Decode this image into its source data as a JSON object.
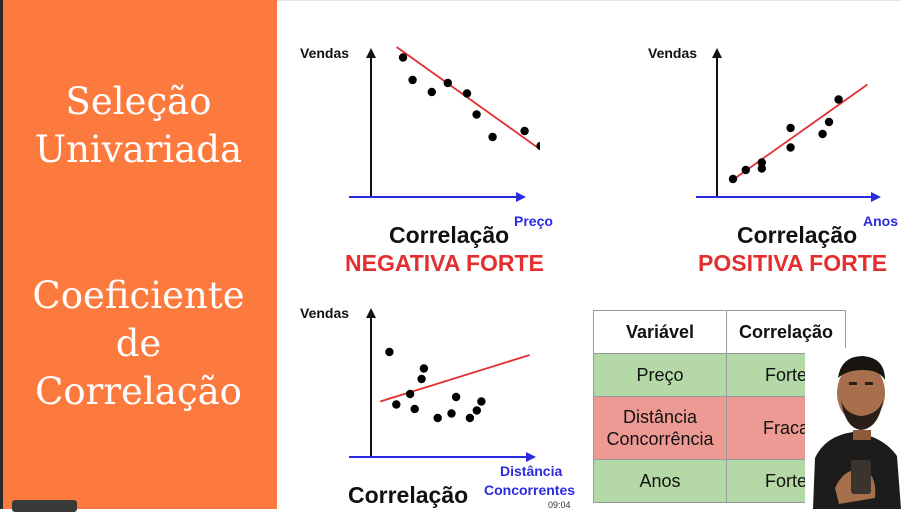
{
  "sidebar": {
    "title_line1": "Seleção",
    "title_line2": "Univariada",
    "subtitle_line1": "Coeficiente",
    "subtitle_line2": "de",
    "subtitle_line3": "Correlação"
  },
  "charts": [
    {
      "ylabel": "Vendas",
      "xlabel": "Preço",
      "caption": "Correlação",
      "strength": "NEGATIVA FORTE"
    },
    {
      "ylabel": "Vendas",
      "xlabel": "Anos",
      "caption": "Correlação",
      "strength": "POSITIVA FORTE"
    },
    {
      "ylabel": "Vendas",
      "xlabel_line1": "Distância",
      "xlabel_line2": "Concorrentes",
      "caption": "Correlação"
    }
  ],
  "chart_data": [
    {
      "type": "scatter",
      "title": "",
      "ylabel": "Vendas",
      "xlabel": "Preço",
      "points": [
        [
          1,
          9.3
        ],
        [
          1.3,
          7.8
        ],
        [
          1.9,
          7.0
        ],
        [
          2.4,
          7.6
        ],
        [
          3.0,
          6.9
        ],
        [
          3.3,
          5.5
        ],
        [
          3.8,
          4.0
        ],
        [
          4.8,
          4.4
        ],
        [
          5.3,
          3.4
        ]
      ],
      "trendline": [
        [
          0.8,
          10.0
        ],
        [
          5.6,
          2.7
        ]
      ],
      "grid": false
    },
    {
      "type": "scatter",
      "title": "",
      "ylabel": "Vendas",
      "xlabel": "Anos",
      "points": [
        [
          0.5,
          1.2
        ],
        [
          0.9,
          1.8
        ],
        [
          1.4,
          2.3
        ],
        [
          1.4,
          1.9
        ],
        [
          2.3,
          3.3
        ],
        [
          2.3,
          4.6
        ],
        [
          3.3,
          4.2
        ],
        [
          3.5,
          5.0
        ],
        [
          3.8,
          6.5
        ]
      ],
      "trendline": [
        [
          0.4,
          1.0
        ],
        [
          4.7,
          7.5
        ]
      ],
      "grid": false
    },
    {
      "type": "scatter",
      "title": "",
      "ylabel": "Vendas",
      "xlabel": "Distância Concorrentes",
      "points": [
        [
          0.8,
          7.0
        ],
        [
          1.1,
          3.5
        ],
        [
          1.7,
          4.2
        ],
        [
          1.9,
          3.2
        ],
        [
          2.2,
          5.2
        ],
        [
          2.3,
          5.9
        ],
        [
          2.9,
          2.6
        ],
        [
          3.5,
          2.9
        ],
        [
          3.7,
          4.0
        ],
        [
          4.3,
          2.6
        ],
        [
          4.6,
          3.1
        ],
        [
          4.8,
          3.7
        ]
      ],
      "trendline": [
        [
          0.4,
          3.7
        ],
        [
          6.9,
          6.8
        ]
      ],
      "grid": false
    }
  ],
  "table": {
    "headers": [
      "Variável",
      "Correlação"
    ],
    "rows": [
      {
        "variable": "Preço",
        "correlation": "Forte",
        "color": "#b5d8a7"
      },
      {
        "variable_line1": "Distância",
        "variable_line2": "Concorrência",
        "correlation": "Fraca",
        "color": "#ee9a94"
      },
      {
        "variable": "Anos",
        "correlation": "Forte",
        "color": "#b5d8a7"
      }
    ]
  },
  "timestamp": "09:04",
  "colors": {
    "sidebar": "#fd7a3e",
    "axis_x": "#2a2ae0",
    "trend": "#e32f2f",
    "strength": "#e32f2f"
  }
}
